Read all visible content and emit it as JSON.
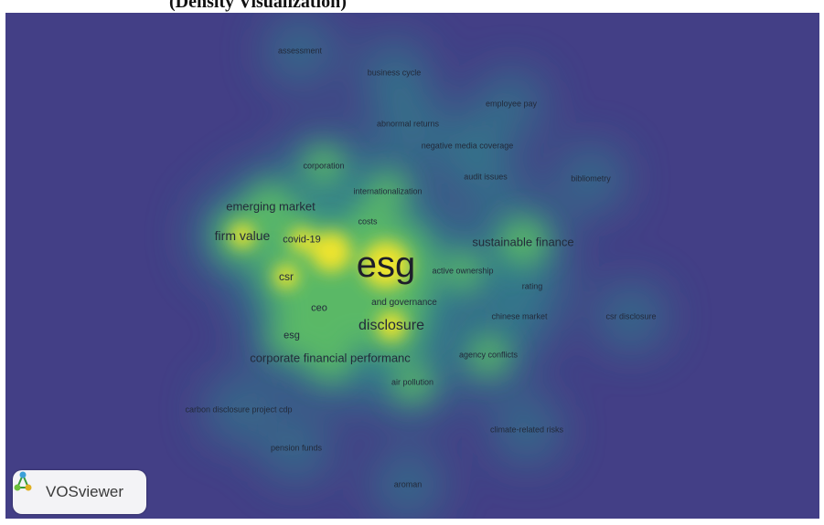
{
  "caption": "(Density Visualization)",
  "logo": {
    "text": "VOSviewer",
    "icon": "vosviewer-network-icon"
  },
  "colors": {
    "background": "#433f86",
    "low": "#2a8a8a",
    "mid": "#4fb86a",
    "high": "#f6e52a"
  },
  "terms": [
    {
      "id": "assessment",
      "label": "assessment",
      "weight": 2
    },
    {
      "id": "business-cycle",
      "label": "business cycle",
      "weight": 2
    },
    {
      "id": "employee-pay",
      "label": "employee pay",
      "weight": 2
    },
    {
      "id": "abnormal-returns",
      "label": "abnormal returns",
      "weight": 2
    },
    {
      "id": "negative-media-coverage",
      "label": "negative media coverage",
      "weight": 2
    },
    {
      "id": "corporation",
      "label": "corporation",
      "weight": 3
    },
    {
      "id": "audit-issues",
      "label": "audit issues",
      "weight": 2
    },
    {
      "id": "bibliometry",
      "label": "bibliometry",
      "weight": 2
    },
    {
      "id": "internationalization",
      "label": "internationalization",
      "weight": 3
    },
    {
      "id": "emerging-market",
      "label": "emerging market",
      "weight": 4
    },
    {
      "id": "costs",
      "label": "costs",
      "weight": 3
    },
    {
      "id": "firm-value",
      "label": "firm value",
      "weight": 5
    },
    {
      "id": "covid-19",
      "label": "covid-19",
      "weight": 5
    },
    {
      "id": "sustainable-finance",
      "label": "sustainable finance",
      "weight": 4
    },
    {
      "id": "esg",
      "label": "esg",
      "weight": 10
    },
    {
      "id": "active-ownership",
      "label": "active ownership",
      "weight": 3
    },
    {
      "id": "csr",
      "label": "csr",
      "weight": 5
    },
    {
      "id": "rating",
      "label": "rating",
      "weight": 2
    },
    {
      "id": "and-governance",
      "label": "and governance",
      "weight": 4
    },
    {
      "id": "ceo",
      "label": "ceo",
      "weight": 4
    },
    {
      "id": "csr-disclosure",
      "label": "csr disclosure",
      "weight": 2
    },
    {
      "id": "chinese-market",
      "label": "chinese market",
      "weight": 2
    },
    {
      "id": "disclosure",
      "label": "disclosure",
      "weight": 6
    },
    {
      "id": "esg-2",
      "label": "esg",
      "weight": 4
    },
    {
      "id": "corporate-financial-performance",
      "label": "corporate financial performanc",
      "weight": 4
    },
    {
      "id": "agency-conflicts",
      "label": "agency conflicts",
      "weight": 3
    },
    {
      "id": "air-pollution",
      "label": "air pollution",
      "weight": 3
    },
    {
      "id": "carbon-disclosure-project-cdp",
      "label": "carbon disclosure project cdp",
      "weight": 2
    },
    {
      "id": "climate-related-risks",
      "label": "climate-related risks",
      "weight": 2
    },
    {
      "id": "pension-funds",
      "label": "pension funds",
      "weight": 2
    },
    {
      "id": "aroman",
      "label": "aroman",
      "weight": 2
    }
  ]
}
